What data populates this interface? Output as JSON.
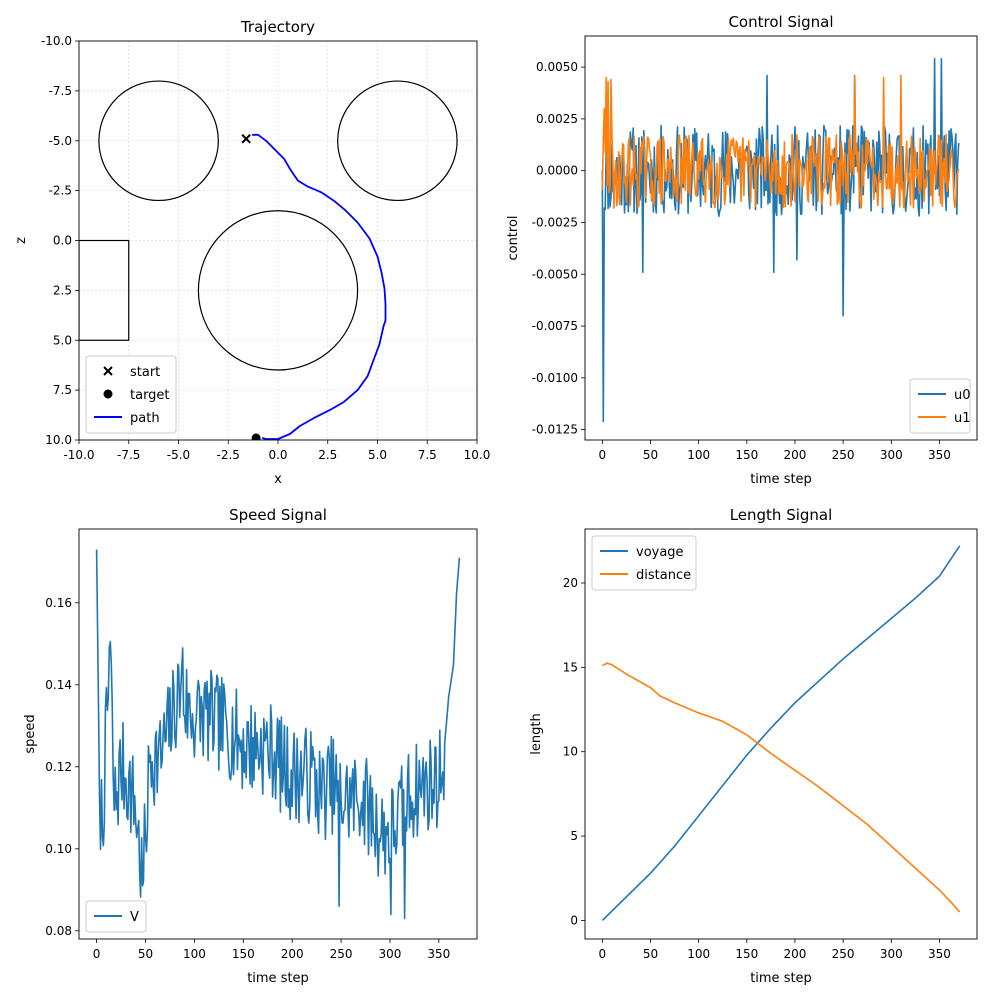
{
  "chart_data": [
    {
      "id": "trajectory",
      "type": "line",
      "title": "Trajectory",
      "xlabel": "x",
      "ylabel": "z",
      "xlim": [
        -10.0,
        10.0
      ],
      "ylim": [
        -10.0,
        10.0
      ],
      "y_inverted": true,
      "grid": true,
      "xticks": [
        "-10.0",
        "-7.5",
        "-5.0",
        "-2.5",
        "0.0",
        "2.5",
        "5.0",
        "7.5",
        "10.0"
      ],
      "yticks": [
        "-10.0",
        "-7.5",
        "-5.0",
        "-2.5",
        "0.0",
        "2.5",
        "5.0",
        "7.5",
        "10.0"
      ],
      "legend_position": "lower-left",
      "legend": [
        "start",
        "target",
        "path"
      ],
      "start": {
        "x": -1.6,
        "z": -5.1
      },
      "target": {
        "x": -1.1,
        "z": 9.9
      },
      "path_color": "#0000ff",
      "obstacles": [
        {
          "shape": "circle",
          "cx": -6.0,
          "cz": -5.0,
          "r": 3.0
        },
        {
          "shape": "circle",
          "cx": 6.0,
          "cz": -5.0,
          "r": 3.0
        },
        {
          "shape": "circle",
          "cx": 0.0,
          "cz": 2.5,
          "r": 4.0
        },
        {
          "shape": "rect",
          "x0": -10.0,
          "x1": -7.5,
          "z0": 0.0,
          "z1": 5.0
        }
      ],
      "path": [
        [
          -1.3,
          -5.3
        ],
        [
          -1.0,
          -5.3
        ],
        [
          -0.6,
          -5.0
        ],
        [
          -0.2,
          -4.6
        ],
        [
          0.3,
          -4.1
        ],
        [
          0.6,
          -3.6
        ],
        [
          0.8,
          -3.3
        ],
        [
          1.0,
          -3.0
        ],
        [
          1.5,
          -2.7
        ],
        [
          2.2,
          -2.4
        ],
        [
          2.8,
          -2.0
        ],
        [
          3.4,
          -1.5
        ],
        [
          4.0,
          -0.9
        ],
        [
          4.6,
          -0.1
        ],
        [
          5.0,
          0.8
        ],
        [
          5.2,
          1.6
        ],
        [
          5.35,
          2.4
        ],
        [
          5.4,
          3.2
        ],
        [
          5.4,
          4.0
        ],
        [
          5.3,
          4.3
        ],
        [
          5.1,
          5.2
        ],
        [
          4.8,
          6.0
        ],
        [
          4.5,
          6.8
        ],
        [
          4.0,
          7.5
        ],
        [
          3.3,
          8.1
        ],
        [
          2.6,
          8.5
        ],
        [
          1.8,
          8.9
        ],
        [
          1.1,
          9.3
        ],
        [
          0.6,
          9.7
        ],
        [
          0.0,
          9.95
        ],
        [
          -0.6,
          9.95
        ],
        [
          -0.8,
          9.9
        ]
      ]
    },
    {
      "id": "control",
      "type": "line",
      "title": "Control Signal",
      "xlabel": "time step",
      "ylabel": "control",
      "xlim": [
        -18,
        389
      ],
      "ylim": [
        -0.013,
        0.0065
      ],
      "xticks": [
        0,
        50,
        100,
        150,
        200,
        250,
        300,
        350
      ],
      "yticks": [
        "-0.0125",
        "-0.0100",
        "-0.0075",
        "-0.0050",
        "-0.0025",
        "0.0000",
        "0.0025",
        "0.0050"
      ],
      "legend_position": "lower-right",
      "n_steps": 371,
      "series": [
        {
          "name": "u0",
          "color": "#1f77b4",
          "style": "noise",
          "amplitude": 0.0022,
          "seed": 11,
          "spikes": [
            [
              0,
              0.0
            ],
            [
              1,
              -0.0121
            ],
            [
              2,
              -0.0018
            ],
            [
              42,
              -0.0049
            ],
            [
              171,
              0.0046
            ],
            [
              178,
              -0.0049
            ],
            [
              202,
              -0.0043
            ],
            [
              250,
              -0.007
            ],
            [
              262,
              0.0046
            ],
            [
              345,
              0.0054
            ],
            [
              352,
              0.0054
            ]
          ]
        },
        {
          "name": "u1",
          "color": "#ff7f0e",
          "style": "noise",
          "amplitude": 0.0018,
          "seed": 29,
          "spikes": [
            [
              2,
              0.003
            ],
            [
              4,
              0.0045
            ],
            [
              6,
              0.0043
            ],
            [
              9,
              0.0044
            ],
            [
              12,
              -0.0018
            ],
            [
              262,
              0.0046
            ],
            [
              292,
              0.0045
            ],
            [
              310,
              0.0046
            ]
          ]
        }
      ]
    },
    {
      "id": "speed",
      "type": "line",
      "title": "Speed Signal",
      "xlabel": "time step",
      "ylabel": "speed",
      "xlim": [
        -18,
        389
      ],
      "ylim": [
        0.078,
        0.178
      ],
      "xticks": [
        0,
        50,
        100,
        150,
        200,
        250,
        300,
        350
      ],
      "yticks": [
        "0.08",
        "0.10",
        "0.12",
        "0.14",
        "0.16"
      ],
      "legend_position": "lower-left",
      "series": [
        {
          "name": "V",
          "color": "#1f77b4",
          "keypoints": [
            [
              0,
              0.173
            ],
            [
              3,
              0.113
            ],
            [
              6,
              0.106
            ],
            [
              10,
              0.128
            ],
            [
              14,
              0.148
            ],
            [
              18,
              0.11
            ],
            [
              25,
              0.12
            ],
            [
              30,
              0.118
            ],
            [
              40,
              0.11
            ],
            [
              47,
              0.091
            ],
            [
              55,
              0.123
            ],
            [
              65,
              0.122
            ],
            [
              75,
              0.13
            ],
            [
              85,
              0.139
            ],
            [
              95,
              0.133
            ],
            [
              100,
              0.132
            ],
            [
              110,
              0.133
            ],
            [
              120,
              0.131
            ],
            [
              130,
              0.13
            ],
            [
              140,
              0.128
            ],
            [
              150,
              0.125
            ],
            [
              160,
              0.125
            ],
            [
              170,
              0.125
            ],
            [
              180,
              0.124
            ],
            [
              190,
              0.12
            ],
            [
              200,
              0.118
            ],
            [
              210,
              0.118
            ],
            [
              220,
              0.118
            ],
            [
              230,
              0.113
            ],
            [
              240,
              0.116
            ],
            [
              250,
              0.112
            ],
            [
              260,
              0.112
            ],
            [
              270,
              0.113
            ],
            [
              280,
              0.109
            ],
            [
              290,
              0.104
            ],
            [
              300,
              0.104
            ],
            [
              310,
              0.108
            ],
            [
              320,
              0.113
            ],
            [
              330,
              0.115
            ],
            [
              340,
              0.116
            ],
            [
              350,
              0.117
            ],
            [
              355,
              0.123
            ],
            [
              360,
              0.137
            ],
            [
              365,
              0.145
            ],
            [
              368,
              0.162
            ],
            [
              371,
              0.171
            ]
          ],
          "noise_amplitude": 0.012,
          "seed": 7,
          "spikes": [
            [
              13,
              0.149
            ],
            [
              47,
              0.091
            ],
            [
              88,
              0.149
            ],
            [
              248,
              0.086
            ],
            [
              301,
              0.084
            ],
            [
              315,
              0.083
            ]
          ]
        }
      ]
    },
    {
      "id": "length",
      "type": "line",
      "title": "Length Signal",
      "xlabel": "time step",
      "ylabel": "length",
      "xlim": [
        -18,
        389
      ],
      "ylim": [
        -1.1,
        23.2
      ],
      "xticks": [
        0,
        50,
        100,
        150,
        200,
        250,
        300,
        350
      ],
      "yticks": [
        "0",
        "5",
        "10",
        "15",
        "20"
      ],
      "legend_position": "upper-left",
      "series": [
        {
          "name": "voyage",
          "color": "#1f77b4",
          "keypoints": [
            [
              0,
              0
            ],
            [
              25,
              1.4
            ],
            [
              50,
              2.8
            ],
            [
              75,
              4.4
            ],
            [
              100,
              6.2
            ],
            [
              125,
              8.0
            ],
            [
              150,
              9.8
            ],
            [
              175,
              11.4
            ],
            [
              200,
              12.9
            ],
            [
              225,
              14.2
            ],
            [
              250,
              15.5
            ],
            [
              275,
              16.7
            ],
            [
              300,
              17.9
            ],
            [
              325,
              19.1
            ],
            [
              350,
              20.4
            ],
            [
              371,
              22.2
            ]
          ]
        },
        {
          "name": "distance",
          "color": "#ff7f0e",
          "keypoints": [
            [
              0,
              15.1
            ],
            [
              5,
              15.25
            ],
            [
              10,
              15.15
            ],
            [
              25,
              14.6
            ],
            [
              50,
              13.8
            ],
            [
              60,
              13.3
            ],
            [
              75,
              12.9
            ],
            [
              100,
              12.3
            ],
            [
              125,
              11.8
            ],
            [
              150,
              11.0
            ],
            [
              175,
              9.9
            ],
            [
              200,
              8.9
            ],
            [
              225,
              7.9
            ],
            [
              250,
              6.8
            ],
            [
              275,
              5.7
            ],
            [
              300,
              4.4
            ],
            [
              325,
              3.1
            ],
            [
              350,
              1.8
            ],
            [
              365,
              0.9
            ],
            [
              371,
              0.5
            ]
          ]
        }
      ]
    }
  ]
}
